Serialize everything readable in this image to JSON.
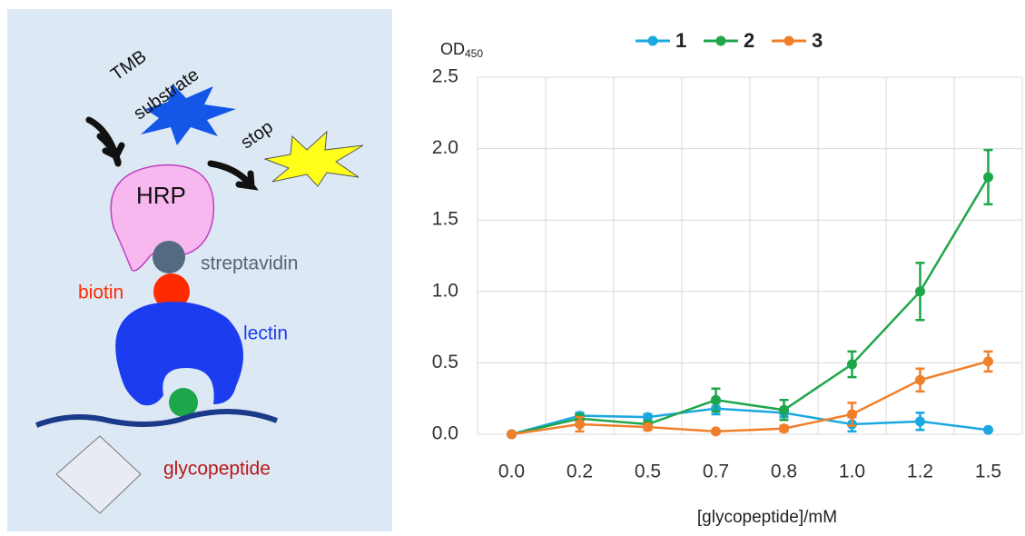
{
  "diagram": {
    "labels": [
      "TMB",
      "substrate",
      "stop",
      "HRP",
      "streptavidin",
      "biotin",
      "lectin",
      "glycopeptide"
    ]
  },
  "chart_data": {
    "type": "line",
    "y_label": {
      "text": "OD",
      "subscript": "450"
    },
    "x_label": "[glycopeptide]/mM",
    "categories": [
      "0.0",
      "0.2",
      "0.5",
      "0.7",
      "0.8",
      "1.0",
      "1.2",
      "1.5"
    ],
    "series": [
      {
        "name": "1",
        "color": "#1ba8e0",
        "values": [
          0,
          0.13,
          0.12,
          0.18,
          0.15,
          0.07,
          0.09,
          0.03
        ],
        "errors": [
          0,
          0.02,
          0.02,
          0.04,
          0.03,
          0.05,
          0.06,
          0.01
        ]
      },
      {
        "name": "2",
        "color": "#1ea64a",
        "values": [
          0,
          0.11,
          0.07,
          0.24,
          0.17,
          0.49,
          1.0,
          1.8
        ],
        "errors": [
          0,
          0.03,
          0.02,
          0.08,
          0.07,
          0.09,
          0.2,
          0.19
        ]
      },
      {
        "name": "3",
        "color": "#f07f2a",
        "values": [
          0,
          0.07,
          0.05,
          0.02,
          0.04,
          0.14,
          0.38,
          0.51
        ],
        "errors": [
          0,
          0.05,
          0.02,
          0.01,
          0.02,
          0.08,
          0.08,
          0.07
        ]
      }
    ],
    "ylim": [
      0,
      2.5
    ],
    "yticks": [
      {
        "value": 0,
        "label": "0.0"
      },
      0.5,
      {
        "value": 1,
        "label": "1.0"
      },
      1.5,
      {
        "value": 2,
        "label": "2.0"
      },
      2.5
    ],
    "grid": true,
    "legend": "top"
  }
}
